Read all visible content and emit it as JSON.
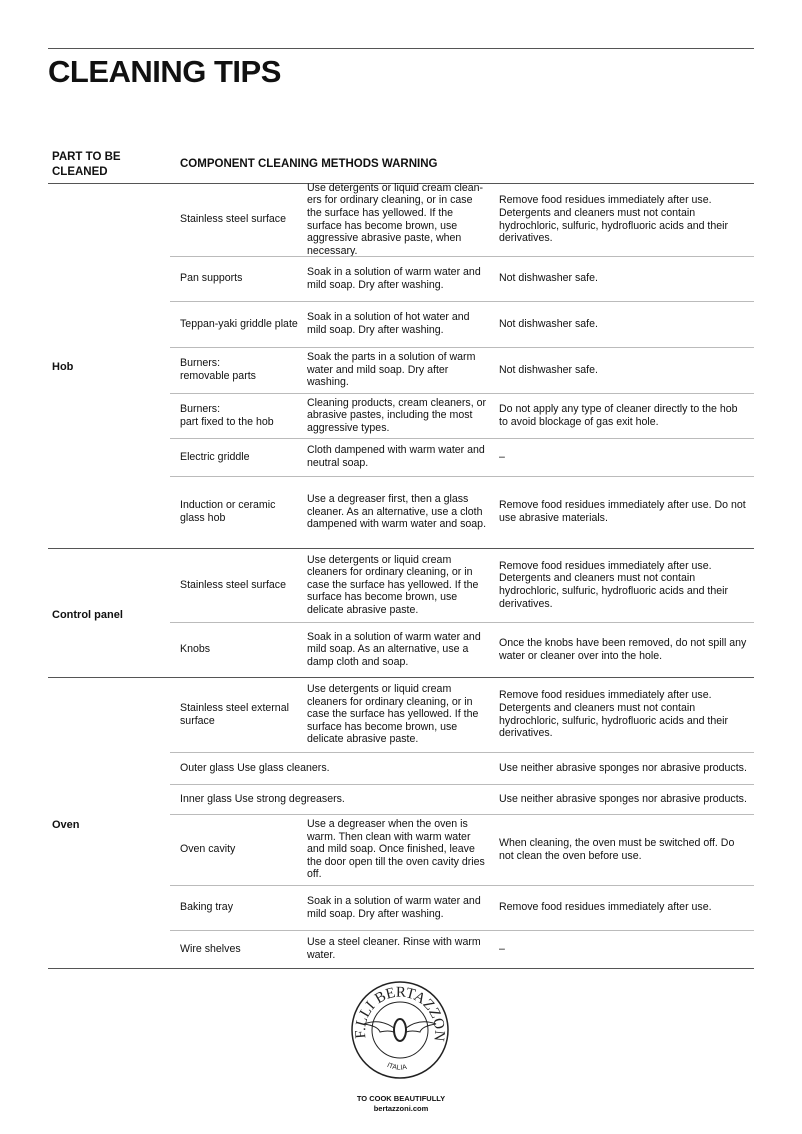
{
  "title": "CLEANING TIPS",
  "headers": {
    "part": "PART TO BE CLEANED",
    "rest": "COMPONENT CLEANING METHODS WARNING"
  },
  "groups": [
    {
      "name": "Hob",
      "rows": [
        {
          "component": "Stainless steel surface",
          "method": "Use detergents or liquid cream clean-ers for ordinary cleaning, or in case the surface has yellowed. If the surface has become brown, use aggressive abrasive paste, when necessary.",
          "warning": "Remove food residues immediately after use. Detergents and cleaners must not contain hydrochloric, sulfuric, hydrofluoric acids and their derivatives."
        },
        {
          "component": "Pan supports",
          "method": "Soak in a solution of warm water and mild soap. Dry after washing.",
          "warning": "Not dishwasher safe."
        },
        {
          "component": "Teppan-yaki griddle plate",
          "method": "Soak in a solution of hot water and mild soap. Dry after washing.",
          "warning": "Not dishwasher safe."
        },
        {
          "component": "Burners:\nremovable parts",
          "method": "Soak the parts in a solution of warm water and mild soap. Dry after washing.",
          "warning": "Not dishwasher safe."
        },
        {
          "component": "Burners:\npart fixed to the hob",
          "method": "Cleaning products, cream cleaners, or abrasive pastes, including the most aggressive types.",
          "warning": "Do not apply any type of cleaner directly to the hob to avoid blockage of gas exit hole."
        },
        {
          "component": "Electric griddle",
          "method": "Cloth dampened with warm water and neutral soap.",
          "warning": "–"
        },
        {
          "component": "Induction or ceramic glass hob",
          "method": "Use a degreaser first, then a glass cleaner. As an alternative, use a cloth dampened with warm water and soap.",
          "warning": "Remove food residues immediately after use. Do not use abrasive materials."
        }
      ]
    },
    {
      "name": "Control panel",
      "rows": [
        {
          "component": "Stainless steel surface",
          "method": "Use detergents or liquid cream cleaners for ordinary cleaning, or in case the surface has yellowed. If the surface has become brown, use delicate abrasive paste.",
          "warning": "Remove food residues immediately after use. Detergents and cleaners must not contain hydrochloric, sulfuric, hydrofluoric acids and their derivatives."
        },
        {
          "component": "Knobs",
          "method": "Soak in a solution of warm water and mild soap. As an alternative, use a damp cloth and soap.",
          "warning": "Once the knobs have been removed, do not spill any water or cleaner over into the hole."
        }
      ]
    },
    {
      "name": "Oven",
      "rows": [
        {
          "component": "Stainless steel external surface",
          "method": "Use detergents or liquid cream cleaners for ordinary cleaning, or in case the surface has yellowed. If the surface has become brown, use delicate abrasive paste.",
          "warning": "Remove food residues immediately after use. Detergents and cleaners must not contain hydrochloric, sulfuric, hydrofluoric acids and their derivatives."
        },
        {
          "component": "Outer glass Use glass cleaners.",
          "method": "",
          "warning": "Use neither abrasive sponges nor abrasive products."
        },
        {
          "component": "Inner glass Use strong degreasers.",
          "method": "",
          "warning": "Use neither abrasive sponges nor abrasive products."
        },
        {
          "component": "Oven cavity",
          "method": "Use a degreaser when the oven is warm. Then clean with warm water and mild soap. Once finished, leave the door open till the oven cavity dries off.",
          "warning": "When cleaning, the oven must be switched off. Do not clean the oven before use."
        },
        {
          "component": "Baking tray",
          "method": "Soak in a solution of warm water and mild soap. Dry after washing.",
          "warning": "Remove food residues immediately after use."
        },
        {
          "component": "Wire shelves",
          "method": "Use a steel cleaner. Rinse with warm water.",
          "warning": "–"
        }
      ]
    }
  ],
  "logo": {
    "brand": "BERTAZZONI",
    "prefix": "F.LLI",
    "country": "ITALIA"
  },
  "footer": {
    "tagline": "TO COOK BEAUTIFULLY",
    "website": "bertazzoni.com"
  }
}
